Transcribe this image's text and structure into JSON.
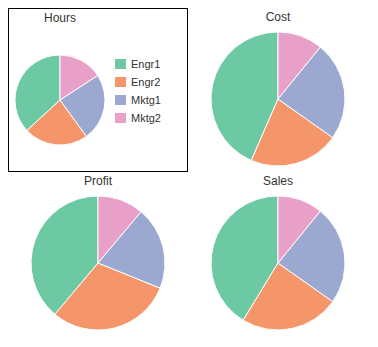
{
  "chart_data": [
    {
      "type": "pie",
      "title": "Hours",
      "categories": [
        "Engr1",
        "Engr2",
        "Mktg1",
        "Mktg2"
      ],
      "values": [
        35,
        22,
        23,
        15
      ],
      "colors": [
        "#6dc8a4",
        "#f5956a",
        "#9ba8d0",
        "#e8a0c8"
      ],
      "legend": "right"
    },
    {
      "type": "pie",
      "title": "Cost",
      "categories": [
        "Engr1",
        "Engr2",
        "Mktg1",
        "Mktg2"
      ],
      "values": [
        40,
        20,
        22,
        10
      ],
      "colors": [
        "#6dc8a4",
        "#f5956a",
        "#9ba8d0",
        "#e8a0c8"
      ]
    },
    {
      "type": "pie",
      "title": "Profit",
      "categories": [
        "Engr1",
        "Engr2",
        "Mktg1",
        "Mktg2"
      ],
      "values": [
        35,
        27,
        18,
        10
      ],
      "colors": [
        "#6dc8a4",
        "#f5956a",
        "#9ba8d0",
        "#e8a0c8"
      ]
    },
    {
      "type": "pie",
      "title": "Sales",
      "categories": [
        "Engr1",
        "Engr2",
        "Mktg1",
        "Mktg2"
      ],
      "values": [
        38,
        22,
        22,
        10
      ],
      "colors": [
        "#6dc8a4",
        "#f5956a",
        "#9ba8d0",
        "#e8a0c8"
      ]
    }
  ]
}
